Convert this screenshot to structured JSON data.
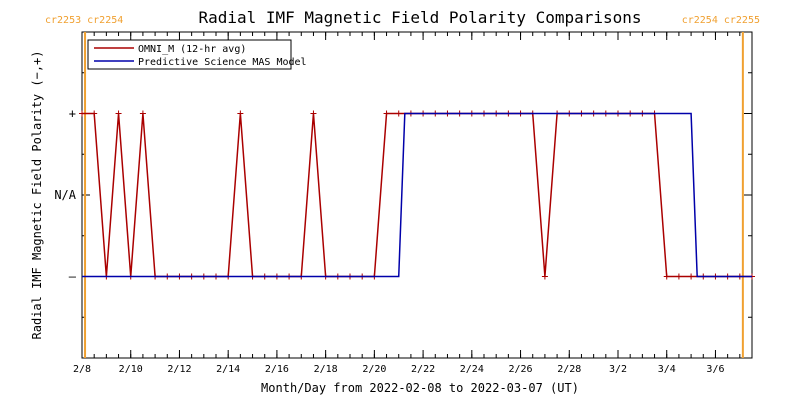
{
  "chart_data": {
    "type": "line",
    "title": "Radial IMF Magnetic Field Polarity Comparisons",
    "xlabel": "Month/Day from 2022-02-08 to 2022-03-07 (UT)",
    "ylabel": "Radial IMF Magnetic Field Polarity (−,+)",
    "x_range": [
      "2022-02-08T00:00",
      "2022-03-07T12:00"
    ],
    "y_categories": [
      "–",
      "N/A",
      "+"
    ],
    "y_values_legend": {
      "-1": "–",
      "0": "N/A",
      "1": "+"
    },
    "ylim": [
      -2,
      2
    ],
    "x_ticks": [
      "2/8",
      "2/10",
      "2/12",
      "2/14",
      "2/16",
      "2/18",
      "2/20",
      "2/22",
      "2/24",
      "2/26",
      "2/28",
      "3/2",
      "3/4",
      "3/6"
    ],
    "x_tick_dates": [
      "2022-02-08",
      "2022-02-10",
      "2022-02-12",
      "2022-02-14",
      "2022-02-16",
      "2022-02-18",
      "2022-02-20",
      "2022-02-22",
      "2022-02-24",
      "2022-02-26",
      "2022-02-28",
      "2022-03-02",
      "2022-03-04",
      "2022-03-06"
    ],
    "carrington_markers": [
      {
        "date": "2022-02-08T03:00",
        "labels": [
          "cr2253",
          "cr2254"
        ],
        "side": "left"
      },
      {
        "date": "2022-03-07T03:00",
        "labels": [
          "cr2254",
          "cr2255"
        ],
        "side": "right"
      }
    ],
    "series": [
      {
        "name": "OMNI_M (12-hr avg)",
        "color": "#aa0000",
        "markers": true,
        "x": [
          "2022-02-08T00:00",
          "2022-02-08T12:00",
          "2022-02-09T00:00",
          "2022-02-09T12:00",
          "2022-02-10T00:00",
          "2022-02-10T12:00",
          "2022-02-11T00:00",
          "2022-02-11T12:00",
          "2022-02-12T00:00",
          "2022-02-12T12:00",
          "2022-02-13T00:00",
          "2022-02-13T12:00",
          "2022-02-14T00:00",
          "2022-02-14T12:00",
          "2022-02-15T00:00",
          "2022-02-15T12:00",
          "2022-02-16T00:00",
          "2022-02-16T12:00",
          "2022-02-17T00:00",
          "2022-02-17T12:00",
          "2022-02-18T00:00",
          "2022-02-18T12:00",
          "2022-02-19T00:00",
          "2022-02-19T12:00",
          "2022-02-20T00:00",
          "2022-02-20T12:00",
          "2022-02-21T00:00",
          "2022-02-21T12:00",
          "2022-02-22T00:00",
          "2022-02-22T12:00",
          "2022-02-23T00:00",
          "2022-02-23T12:00",
          "2022-02-24T00:00",
          "2022-02-24T12:00",
          "2022-02-25T00:00",
          "2022-02-25T12:00",
          "2022-02-26T00:00",
          "2022-02-26T12:00",
          "2022-02-27T00:00",
          "2022-02-27T12:00",
          "2022-02-28T00:00",
          "2022-02-28T12:00",
          "2022-03-01T00:00",
          "2022-03-01T12:00",
          "2022-03-02T00:00",
          "2022-03-02T12:00",
          "2022-03-03T00:00",
          "2022-03-03T12:00",
          "2022-03-04T00:00",
          "2022-03-04T12:00",
          "2022-03-05T00:00",
          "2022-03-05T12:00",
          "2022-03-06T00:00",
          "2022-03-06T12:00",
          "2022-03-07T00:00",
          "2022-03-07T12:00"
        ],
        "y": [
          1,
          1,
          -1,
          1,
          -1,
          1,
          -1,
          -1,
          -1,
          -1,
          -1,
          -1,
          -1,
          1,
          -1,
          -1,
          -1,
          -1,
          -1,
          1,
          -1,
          -1,
          -1,
          -1,
          -1,
          1,
          1,
          1,
          1,
          1,
          1,
          1,
          1,
          1,
          1,
          1,
          1,
          1,
          -1,
          1,
          1,
          1,
          1,
          1,
          1,
          1,
          1,
          1,
          -1,
          -1,
          -1,
          -1,
          -1,
          -1,
          -1,
          -1
        ]
      },
      {
        "name": "Predictive Science MAS Model",
        "color": "#0000aa",
        "markers": false,
        "x": [
          "2022-02-08T00:00",
          "2022-02-21T00:00",
          "2022-02-21T06:00",
          "2022-03-05T00:00",
          "2022-03-05T06:00",
          "2022-03-07T12:00"
        ],
        "y": [
          -1,
          -1,
          1,
          1,
          -1,
          -1
        ]
      }
    ],
    "legend": {
      "placement": "top-left",
      "boxed": true
    }
  }
}
